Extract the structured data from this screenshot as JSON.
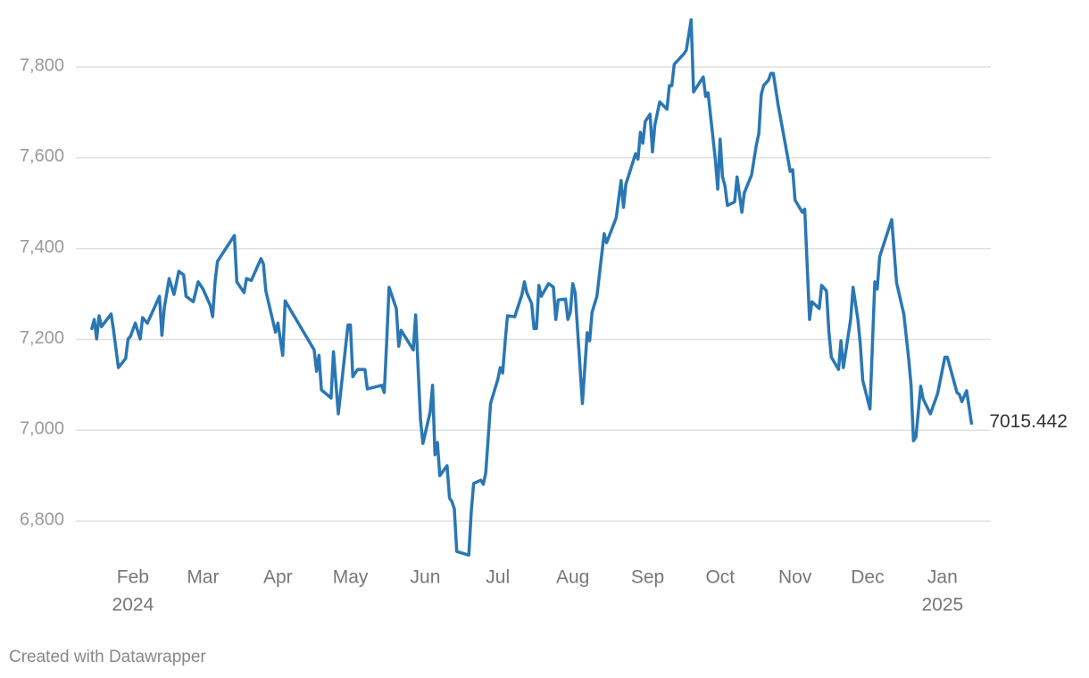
{
  "chart_data": {
    "type": "line",
    "x": [
      14,
      15,
      16,
      17,
      18,
      22,
      23,
      25,
      28,
      29,
      30,
      32,
      34,
      35,
      37,
      42,
      43,
      44,
      46,
      48,
      50,
      52,
      53,
      56,
      58,
      60,
      63,
      64,
      65,
      66,
      73,
      74,
      77,
      78,
      80,
      84,
      85,
      86,
      90,
      91,
      93,
      94,
      106,
      107,
      108,
      109,
      113,
      114,
      116,
      120,
      121,
      122,
      124,
      127,
      128,
      134,
      135,
      136,
      137,
      140,
      141,
      142,
      147,
      148,
      150,
      151,
      154,
      155,
      156,
      157,
      158,
      161,
      162,
      163,
      164,
      165,
      170,
      171,
      172,
      175,
      176,
      177,
      178,
      179,
      182,
      183,
      184,
      185,
      186,
      189,
      192,
      193,
      194,
      196,
      197,
      198,
      199,
      200,
      203,
      205,
      206,
      207,
      210,
      211,
      212,
      213,
      214,
      217,
      219,
      220,
      221,
      223,
      226,
      227,
      231,
      233,
      234,
      235,
      239,
      240,
      241,
      242,
      243,
      245,
      246,
      247,
      249,
      252,
      253,
      254,
      255,
      259,
      260,
      262,
      263,
      267,
      268,
      269,
      272,
      273,
      274,
      275,
      276,
      277,
      280,
      281,
      283,
      284,
      287,
      289,
      290,
      291,
      292,
      294,
      295,
      296,
      298,
      301,
      303,
      304,
      305,
      308,
      309,
      311,
      312,
      315,
      316,
      318,
      319,
      320,
      323,
      324,
      325,
      328,
      329,
      331,
      332,
      333,
      336,
      338,
      339,
      340,
      345,
      347,
      350,
      352,
      353,
      354,
      355,
      357,
      358,
      361,
      364,
      367,
      368,
      372,
      373,
      374,
      376,
      378
    ],
    "values": [
      7224,
      7244,
      7201,
      7252,
      7228,
      7256,
      7220,
      7138,
      7158,
      7201,
      7207,
      7236,
      7201,
      7248,
      7236,
      7295,
      7209,
      7270,
      7334,
      7299,
      7350,
      7342,
      7295,
      7283,
      7327,
      7311,
      7275,
      7250,
      7327,
      7372,
      7429,
      7327,
      7303,
      7334,
      7330,
      7378,
      7366,
      7307,
      7216,
      7236,
      7165,
      7285,
      7177,
      7130,
      7165,
      7089,
      7071,
      7173,
      7036,
      7232,
      7232,
      7118,
      7134,
      7134,
      7091,
      7099,
      7083,
      7193,
      7315,
      7268,
      7185,
      7220,
      7177,
      7254,
      7024,
      6971,
      7040,
      7099,
      6946,
      6973,
      6900,
      6922,
      6851,
      6843,
      6827,
      6733,
      6725,
      6820,
      6883,
      6890,
      6881,
      6906,
      6981,
      7059,
      7112,
      7138,
      7126,
      7193,
      7252,
      7250,
      7299,
      7327,
      7303,
      7279,
      7224,
      7224,
      7319,
      7295,
      7323,
      7315,
      7244,
      7287,
      7289,
      7244,
      7260,
      7323,
      7303,
      7059,
      7215,
      7197,
      7260,
      7295,
      7433,
      7413,
      7468,
      7550,
      7491,
      7542,
      7609,
      7597,
      7656,
      7632,
      7680,
      7696,
      7613,
      7673,
      7723,
      7707,
      7759,
      7759,
      7806,
      7829,
      7837,
      7904,
      7745,
      7778,
      7735,
      7743,
      7597,
      7531,
      7641,
      7558,
      7538,
      7495,
      7503,
      7558,
      7480,
      7523,
      7562,
      7629,
      7653,
      7739,
      7759,
      7771,
      7786,
      7786,
      7716,
      7629,
      7570,
      7574,
      7507,
      7480,
      7487,
      7244,
      7283,
      7268,
      7319,
      7307,
      7216,
      7161,
      7134,
      7197,
      7138,
      7244,
      7315,
      7244,
      7189,
      7110,
      7047,
      7327,
      7311,
      7382,
      7464,
      7325,
      7256,
      7158,
      7099,
      6977,
      6985,
      7097,
      7069,
      7036,
      7081,
      7161,
      7161,
      7083,
      7079,
      7063,
      7087,
      7015.442
    ],
    "color": "#2a77b4",
    "xlim": [
      7.4,
      386
    ],
    "xticks": [
      {
        "value": 31,
        "label": "Feb"
      },
      {
        "value": 60,
        "label": "Mar"
      },
      {
        "value": 91,
        "label": "Apr"
      },
      {
        "value": 121,
        "label": "May"
      },
      {
        "value": 152,
        "label": "Jun"
      },
      {
        "value": 182,
        "label": "Jul"
      },
      {
        "value": 213,
        "label": "Aug"
      },
      {
        "value": 244,
        "label": "Sep"
      },
      {
        "value": 274,
        "label": "Oct"
      },
      {
        "value": 305,
        "label": "Nov"
      },
      {
        "value": 335,
        "label": "Dec"
      },
      {
        "value": 366,
        "label": "Jan"
      }
    ],
    "x_year_labels": [
      {
        "value": 31,
        "label": "2024"
      },
      {
        "value": 366,
        "label": "2025"
      }
    ],
    "ylim": [
      6700,
      7920
    ],
    "yticks": [
      {
        "value": 6800,
        "label": "6,800"
      },
      {
        "value": 7000,
        "label": "7,000"
      },
      {
        "value": 7200,
        "label": "7,200"
      },
      {
        "value": 7400,
        "label": "7,400"
      },
      {
        "value": 7600,
        "label": "7,600"
      },
      {
        "value": 7800,
        "label": "7,800"
      }
    ],
    "grid": true,
    "footer": "Created with Datawrapper"
  }
}
